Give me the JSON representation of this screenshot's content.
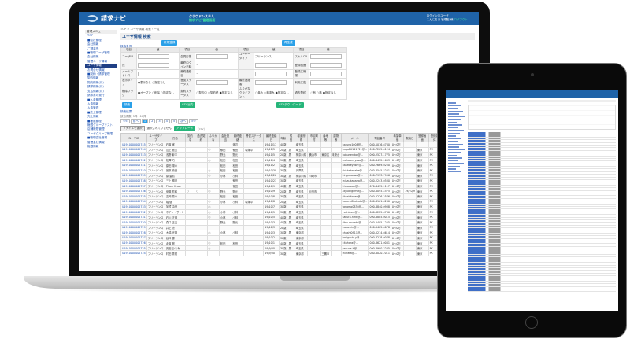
{
  "header": {
    "logo": "請求ナビ",
    "center_line1": "クラウドシステム",
    "center_line2": "請求ナビ 管理画面",
    "right_line1": "ログイン中ユーザ",
    "right_line2": "こんにちは 管理者 様",
    "logout": "ログアウト"
  },
  "sidebar": {
    "title": "管理メニュー",
    "items": [
      "TOP",
      "■会社管理",
      "会社情報",
      "ご請求先",
      "■管理ユーザ管理",
      "会社情報",
      "管理ユーザ情報",
      "ユーザ情報",
      "お問合せ情報",
      "■契約・請求管理",
      "契約情報",
      "契約情報(月)",
      "請求情報(月)",
      "支払情報(月)",
      "請求書の発行",
      "■入金管理",
      "入金情報",
      "入金管理",
      "■売上管理",
      "売上情報",
      "■権限管理",
      "権限グループリスト",
      "店舗権限管理",
      "ユーザグループ権限",
      "■管理会社管理",
      "管理会社情報",
      "権限情報"
    ],
    "active_index": 7
  },
  "main": {
    "breadcrumb": "TOP > ユーザ情報 検索・一覧",
    "title": "ユーザ情報 検索",
    "conditions_label": "検索条件",
    "new_button": "新規登録",
    "clear_button": "再生成",
    "col_item": "項目",
    "col_value": "値",
    "form_rows": [
      [
        "ユーザID",
        "",
        "会員形態",
        "",
        "ユーザータイプ",
        "フリーランス",
        "スキルCD",
        ""
      ],
      [
        "氏",
        "",
        "最終ログイン日時",
        "~",
        "",
        "",
        "登録画面",
        ""
      ],
      [
        "メールアドレス",
        "",
        "最終連絡日",
        "~",
        "",
        "",
        "登録広報媒",
        ""
      ],
      [
        "表示タイプ",
        "●表示なし ○指定なし",
        "督促ステータス",
        "",
        "最終連絡者",
        "",
        "利用広告",
        ""
      ],
      [
        "削除フラグ",
        "●オープン ○削除 ○指定なし",
        "契約ステータス",
        "○契約中 ○契約終 ●指定なし",
        "ふりがなクライアント",
        "○済み ○未済み ●指定なし",
        "過去契約",
        "○有 ○無 ●指定なし"
      ]
    ],
    "search_button": "検索",
    "csv_button": "CSV出力",
    "csv_download_button": "CSVダウンロード",
    "results_label": "検索結果",
    "results_count": "該当件数: 5件〜10件",
    "pager": [
      "<<",
      "前へ",
      "1",
      "2",
      "3",
      "4",
      "5",
      "次へ",
      ">>"
    ],
    "pager_active": "1",
    "file_button": "ファイルを選択",
    "file_status": "選択されていません",
    "upload_button": "アップロード",
    "upload_note": "(csv)",
    "columns": [
      "ユーザID",
      "ユーザタイプ",
      "氏名",
      "契約中",
      "過去契約",
      "ふりがな",
      "会社担当",
      "最終連絡",
      "督促ステータス",
      "最終連絡日",
      "年齢",
      "性別",
      "都道府県",
      "市区町村",
      "番地等",
      "建物等",
      "メール",
      "電話番号",
      "希望単価",
      "契約日",
      "登録画面",
      "登録媒体",
      "利用広告",
      "登録日",
      "削除"
    ],
    "rows": [
      [
        "U1910000002745",
        "フリーランス",
        "石原 実",
        "",
        "",
        "",
        "",
        "渡辺",
        "",
        "19/11/17",
        "40歳",
        "",
        "埼玉県",
        "",
        "",
        "",
        "haruno1008@...",
        "080-1016-6780",
        "0～0万",
        "",
        "",
        "",
        "",
        "19/11/17",
        "削除"
      ],
      [
        "U1910000002744",
        "フリーランス",
        "山上 聡太",
        "",
        "",
        "○",
        "郁田",
        "郁田",
        "現場中",
        "19/11/5",
        "20歳",
        "男",
        "埼玉県",
        "",
        "",
        "",
        "hugo20141721@...",
        "090-7205-0124",
        "0～0万",
        "",
        "東京",
        "PC",
        "",
        "19/11/5",
        "削除"
      ],
      [
        "U1910000002743",
        "フリーランス",
        "浅野 幹平",
        "",
        "",
        "",
        "野元",
        "野元",
        "",
        "19/11/5",
        "20歳",
        "男",
        "神奈川県",
        "横浜市",
        "東京区",
        "未来台",
        "kohuriendor@...",
        "090-2527-1775",
        "0～0万",
        "",
        "東京",
        "PC",
        "",
        "19/11/5",
        "削除"
      ],
      [
        "U1910000002742",
        "フリーランス",
        "松澤 巧",
        "",
        "",
        "○",
        "松田",
        "松田",
        "",
        "19/11/4",
        "50歳",
        "男",
        "埼玉県",
        "",
        "",
        "",
        "mahoum.yusa@...",
        "080-4452-1603",
        "0～0万",
        "",
        "東京",
        "PC",
        "",
        "19/11/4",
        "削除"
      ],
      [
        "U1910000002741",
        "フリーランス",
        "原田 陽介",
        "",
        "",
        "",
        "松田",
        "松田",
        "",
        "19/11/2",
        "30歳",
        "男",
        "埼玉県",
        "",
        "",
        "",
        "hasebeyoshi@...",
        "080-7669-0250",
        "0～0万",
        "",
        "東京",
        "PC",
        "",
        "19/11/2",
        "削除"
      ],
      [
        "U1910000002740",
        "フリーランス",
        "宮原 貴美",
        "",
        "",
        "○",
        "松田",
        "松田",
        "",
        "19/10/30",
        "30歳",
        "",
        "兵庫県",
        "",
        "",
        "",
        "shirhatanabe@...",
        "080-8545-5261",
        "0～0万",
        "",
        "東京",
        "PC",
        "",
        "19/10/30",
        "削除"
      ],
      [
        "U1910000002739",
        "フリーランス",
        "原 聖賀",
        "",
        "",
        "○",
        "小林",
        "小林",
        "",
        "19/10/26",
        "30歳",
        "男",
        "神奈川県",
        "川崎市",
        "",
        "",
        "kinguosawa@...",
        "090-7933-7956",
        "0～0万",
        "",
        "東京",
        "PC",
        "",
        "19/10/26",
        "削除"
      ],
      [
        "U1910000002738",
        "フリーランス",
        "三上 勝彦",
        "",
        "",
        "",
        "",
        "郁田",
        "",
        "19/10/21",
        "30歳",
        "",
        "埼玉県",
        "",
        "",
        "",
        "misaukaparia@...",
        "080-2243-0530",
        "0～0万",
        "",
        "東京",
        "PC",
        "",
        "19/10/21",
        "削除"
      ],
      [
        "U1910000002737",
        "フリーランス",
        "Pham Khoa",
        "",
        "",
        "",
        "",
        "郁田",
        "",
        "19/10/9",
        "40歳",
        "男",
        "埼玉県",
        "",
        "",
        "",
        "khoadoan@...",
        "070-4435-1117",
        "0～0万",
        "",
        "東京",
        "PC",
        "",
        "19/10/9",
        "削除"
      ],
      [
        "U1910000002736",
        "フリーランス",
        "伊藤 哲和",
        "○",
        "○",
        "○",
        "野元",
        "野元",
        "",
        "19/10/9",
        "20歳",
        "男",
        "埼玉県",
        "戸田市",
        "",
        "",
        "atyuangemb@...",
        "080-6095-4575",
        "0～0万",
        "19/10/9",
        "東京",
        "PC",
        "",
        "19/10/9",
        "削除"
      ],
      [
        "U1910000002735",
        "フリーランス",
        "吉岡 慶介",
        "",
        "",
        "",
        "松田",
        "松田",
        "",
        "19/10/8",
        "30歳",
        "",
        "埼玉県",
        "",
        "",
        "",
        "rikashitaker@...",
        "080-5226-2576",
        "0～0万",
        "",
        "東京",
        "PC",
        "",
        "19/10/8",
        "削除"
      ],
      [
        "U1910000002734",
        "フリーランス",
        "堀 健",
        "",
        "",
        "○",
        "小林",
        "小林",
        "現場中",
        "19/10/8",
        "20歳",
        "",
        "埼玉県",
        "",
        "",
        "",
        "hasemi8fukuda@...",
        "080-4161-0260",
        "0～0万",
        "",
        "東京",
        "PC",
        "",
        "19/10/8",
        "削除"
      ],
      [
        "U1910000002733",
        "フリーランス",
        "加賀 由美",
        "",
        "",
        "○",
        "",
        "",
        "",
        "19/10/7",
        "30歳",
        "",
        "埼玉県",
        "",
        "",
        "",
        "tanomo0830@...",
        "090-8840-0938",
        "0～0万",
        "",
        "東京",
        "PC",
        "",
        "19/10/7",
        "削除"
      ],
      [
        "U1910000002732",
        "フリーランス",
        "ホアン・ヴァン",
        "",
        "",
        "○",
        "小林",
        "小林",
        "",
        "19/10/5",
        "30歳",
        "男",
        "埼玉県",
        "",
        "",
        "",
        "yoshizum@...",
        "080-8225-6780",
        "0～0万",
        "",
        "東京",
        "PC",
        "",
        "19/10/5",
        "削除"
      ],
      [
        "U1910000002731",
        "フリーランス",
        "石川 正明",
        "",
        "",
        "○",
        "小林",
        "小林",
        "",
        "19/10/5",
        "40歳",
        "男",
        "埼玉県",
        "",
        "",
        "",
        "sakura.nmk@...",
        "090-8805-0015",
        "0～0万",
        "",
        "東京",
        "PC",
        "",
        "19/10/5",
        "削除"
      ],
      [
        "U1910000002730",
        "フリーランス",
        "森口 正文",
        "",
        "",
        "",
        "野元",
        "野元",
        "",
        "19/10/3",
        "40歳",
        "男",
        "埼玉県",
        "",
        "",
        "",
        "ritsu.murata@...",
        "080-5405-1225",
        "0～0万",
        "",
        "東京",
        "PC",
        "",
        "19/10/3",
        "削除"
      ],
      [
        "U1910000002729",
        "フリーランス",
        "井上 凛",
        "",
        "",
        "",
        "",
        "",
        "",
        "19/10/3",
        "20歳",
        "",
        "埼玉県",
        "",
        "",
        "",
        "inoue.rin@...",
        "090-0405-0078",
        "0～0万",
        "",
        "東京",
        "PC",
        "",
        "19/10/3",
        "削除"
      ],
      [
        "U1910000002728",
        "フリーランス",
        "大橋 光雄",
        "",
        "",
        "○",
        "小林",
        "小林",
        "",
        "19/10/3",
        "30歳",
        "男",
        "東京都",
        "",
        "",
        "",
        "ohashi0911@...",
        "080-5214-6614",
        "0～0万",
        "",
        "東京",
        "PC",
        "",
        "19/10/3",
        "削除"
      ],
      [
        "U1910000002727",
        "フリーランス",
        "谷口 優",
        "",
        "",
        "",
        "",
        "",
        "",
        "19/10/2",
        "30歳",
        "",
        "東京都",
        "",
        "",
        "",
        "taniguchi.y@...",
        "090-8218-0078",
        "0～0万",
        "",
        "東京",
        "PC",
        "",
        "19/10/2",
        "削除"
      ],
      [
        "U1910000002726",
        "フリーランス",
        "北原 聡",
        "",
        "",
        "○",
        "松田",
        "松田",
        "",
        "19/10/1",
        "40歳",
        "男",
        "埼玉県",
        "",
        "",
        "",
        "kitahara@...",
        "080-8621-0081",
        "0～0万",
        "",
        "東京",
        "PC",
        "",
        "19/10/1",
        "削除"
      ],
      [
        "U1910000002725",
        "フリーランス",
        "安田 ひろみ",
        "",
        "",
        "○",
        "",
        "",
        "",
        "19/9/30",
        "30歳",
        "男",
        "埼玉県",
        "",
        "",
        "",
        "yasuda.h@...",
        "090-8900-2245",
        "0～0万",
        "",
        "東京",
        "PC",
        "",
        "19/9/30",
        "削除"
      ],
      [
        "U1910000002724",
        "フリーランス",
        "村田 秀樹",
        "",
        "",
        "",
        "",
        "",
        "",
        "19/9/30",
        "30歳",
        "",
        "東京都",
        "",
        "三鷹市",
        "",
        "murata@...",
        "080-6020-2011",
        "0～0万",
        "",
        "東京",
        "PC",
        "",
        "19/9/30",
        "削除"
      ]
    ]
  },
  "colors": {
    "header": "#1f63a8",
    "accent": "#2aa0e8",
    "green": "#26b57a",
    "link": "#1a4fb0"
  }
}
